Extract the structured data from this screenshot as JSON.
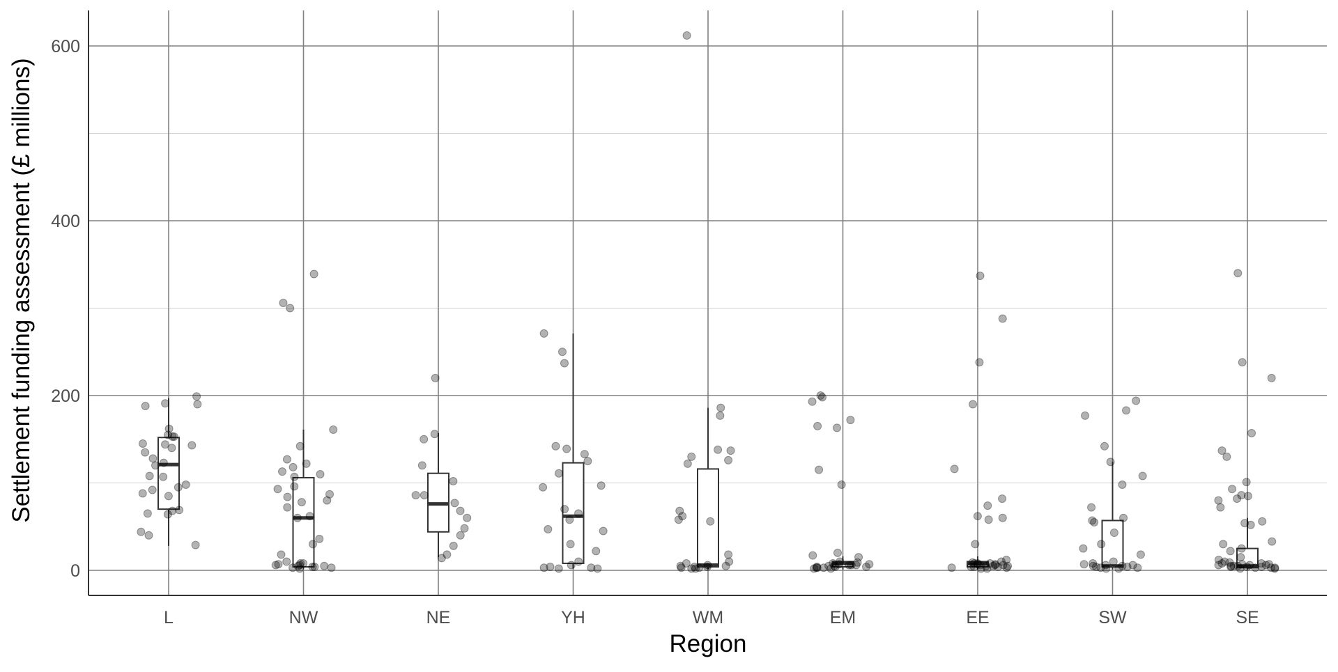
{
  "chart_data": {
    "type": "boxplot",
    "xlabel": "Region",
    "ylabel": "Settlement funding assessment (£ millions)",
    "ylim": [
      -28,
      628
    ],
    "yticks": [
      0,
      200,
      400,
      600
    ],
    "grid": true,
    "legend": "none",
    "colors": {
      "point": "#000000",
      "point_alpha": 0.3,
      "box": "#333333",
      "major_grid": "#808080",
      "minor_grid": "#d0d0d0"
    },
    "categories": [
      "L",
      "NW",
      "NE",
      "YH",
      "WM",
      "EM",
      "EE",
      "SW",
      "SE"
    ],
    "boxes": [
      {
        "q1": 70,
        "median": 121,
        "q3": 152,
        "lower": 28,
        "upper": 197
      },
      {
        "q1": 4,
        "median": 60,
        "q3": 106,
        "lower": 2,
        "upper": 161
      },
      {
        "q1": 44,
        "median": 76,
        "q3": 111,
        "lower": 15,
        "upper": 157
      },
      {
        "q1": 8,
        "median": 62,
        "q3": 123,
        "lower": 2,
        "upper": 271
      },
      {
        "q1": 4,
        "median": 6,
        "q3": 116,
        "lower": 1,
        "upper": 186
      },
      {
        "q1": 4,
        "median": 8,
        "q3": 10,
        "lower": 1,
        "upper": 16
      },
      {
        "q1": 4,
        "median": 8,
        "q3": 10,
        "lower": 1,
        "upper": 16
      },
      {
        "q1": 4,
        "median": 5,
        "q3": 57,
        "lower": 1,
        "upper": 124
      },
      {
        "q1": 3,
        "median": 5,
        "q3": 25,
        "lower": 1,
        "upper": 60
      }
    ],
    "points": [
      [
        155,
        153,
        135,
        128,
        144,
        162,
        145,
        143,
        153,
        107,
        120,
        98,
        95,
        88,
        85,
        92,
        69,
        65,
        68,
        64,
        40,
        44,
        29,
        190,
        188,
        191,
        199,
        108,
        123,
        140
      ],
      [
        339,
        300,
        306,
        161,
        142,
        127,
        122,
        118,
        113,
        110,
        107,
        96,
        93,
        87,
        84,
        80,
        78,
        72,
        62,
        60,
        36,
        30,
        18,
        10,
        8,
        7,
        6,
        5,
        4,
        4,
        3,
        3,
        2,
        8,
        6,
        5
      ],
      [
        220,
        156,
        150,
        120,
        102,
        86,
        86,
        77,
        68,
        60,
        48,
        40,
        28,
        18,
        14
      ],
      [
        271,
        250,
        237,
        142,
        139,
        133,
        125,
        111,
        97,
        95,
        70,
        65,
        58,
        47,
        45,
        30,
        22,
        10,
        6,
        4,
        3,
        2,
        2,
        3
      ],
      [
        612,
        186,
        177,
        138,
        137,
        130,
        126,
        122,
        68,
        62,
        58,
        56,
        18,
        10,
        8,
        6,
        5,
        4,
        4,
        3,
        3,
        2,
        2,
        5
      ],
      [
        200,
        198,
        193,
        172,
        165,
        163,
        115,
        98,
        20,
        17,
        15,
        10,
        9,
        8,
        7,
        6,
        6,
        5,
        5,
        4,
        4,
        3,
        3,
        3,
        2,
        2,
        6,
        7,
        4
      ],
      [
        337,
        288,
        238,
        190,
        116,
        82,
        74,
        62,
        60,
        58,
        30,
        12,
        10,
        9,
        8,
        8,
        7,
        6,
        6,
        5,
        5,
        4,
        4,
        3,
        3,
        2,
        2,
        4,
        5,
        6,
        7,
        8
      ],
      [
        194,
        183,
        177,
        142,
        124,
        108,
        98,
        72,
        60,
        57,
        55,
        43,
        30,
        25,
        18,
        10,
        7,
        6,
        5,
        5,
        4,
        4,
        3,
        3,
        2,
        2,
        6,
        8
      ],
      [
        340,
        238,
        220,
        157,
        137,
        130,
        101,
        93,
        86,
        85,
        82,
        80,
        72,
        56,
        54,
        52,
        33,
        30,
        25,
        22,
        15,
        12,
        10,
        8,
        7,
        6,
        6,
        5,
        5,
        5,
        4,
        4,
        4,
        3,
        3,
        3,
        2,
        2,
        6,
        7,
        8,
        9
      ]
    ]
  }
}
